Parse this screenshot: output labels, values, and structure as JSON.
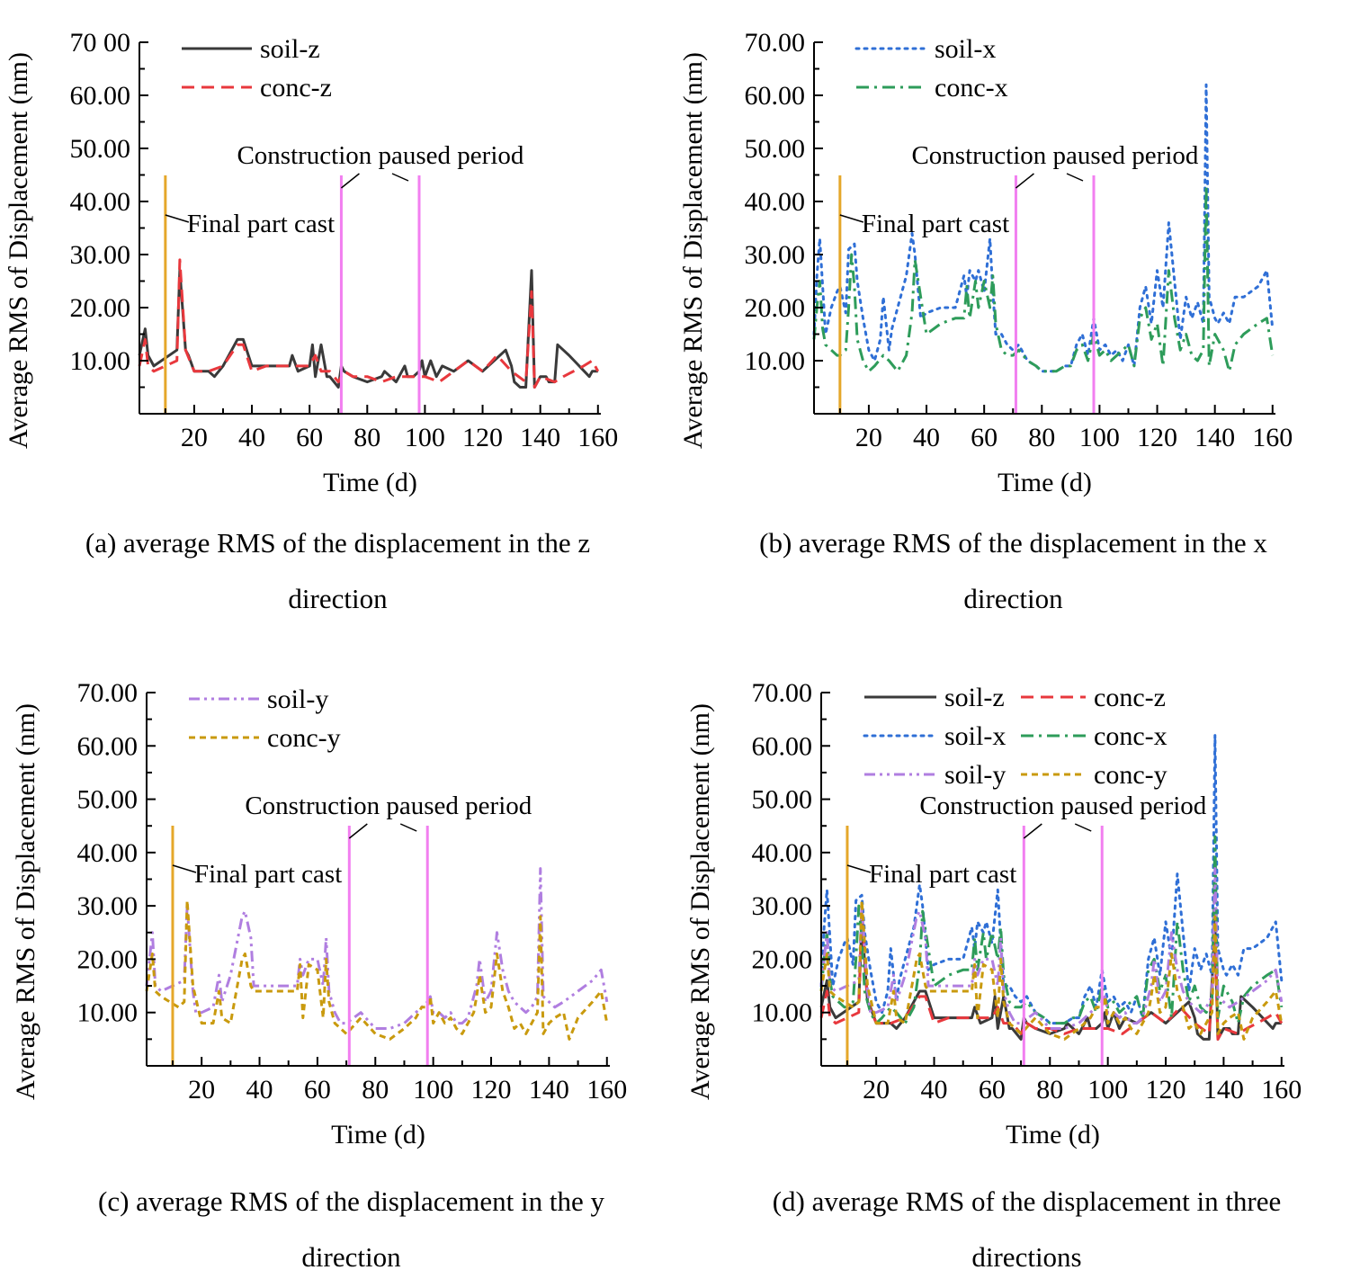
{
  "colors": {
    "soil-z": "#3a3a3a",
    "conc-z": "#e8383d",
    "soil-x": "#2f6fd6",
    "conc-x": "#2e9c5a",
    "soil-y": "#b07ee0",
    "conc-y": "#c99a0e",
    "cast": "#e5a72a",
    "paused": "#f27ff0"
  },
  "chart_data": [
    {
      "id": "a",
      "type": "line",
      "title": "",
      "xlabel": "Time (d)",
      "ylabel": "Average RMS of Displacement (nm)",
      "xlim": [
        1,
        161
      ],
      "ylim": [
        0,
        70
      ],
      "xticks": [
        "20",
        "40",
        "60",
        "80",
        "100",
        "120",
        "140",
        "160"
      ],
      "yticks": [
        "10.00",
        "20.00",
        "30.00",
        "40.00",
        "50.00",
        "60.00",
        "70 00"
      ],
      "legend": [
        "soil-z",
        "conc-z"
      ],
      "legend_position": "top-left",
      "caption": [
        "(a) average RMS of the displacement in the z",
        "direction"
      ],
      "annotations": {
        "cast_label": "Final part cast",
        "cast_day": 10,
        "paused_label": "Construction paused period",
        "paused_days": [
          71,
          98
        ]
      },
      "series": [
        {
          "name": "soil-z",
          "style": "solid",
          "x": [
            1,
            3,
            4,
            6,
            14,
            15,
            17,
            18,
            20,
            25,
            27,
            30,
            35,
            37,
            40,
            45,
            53,
            54,
            56,
            60,
            61,
            62,
            64,
            66,
            67,
            70,
            71,
            72,
            75,
            80,
            85,
            86,
            90,
            93,
            94,
            96,
            98,
            99,
            100,
            102,
            104,
            106,
            110,
            115,
            120,
            124,
            128,
            130,
            131,
            133,
            135,
            137,
            138,
            140,
            141,
            142,
            143,
            145,
            146,
            148,
            150,
            157,
            158,
            160
          ],
          "y": [
            11,
            16,
            11,
            9,
            12,
            27,
            12,
            11,
            8,
            8,
            7,
            9,
            14,
            14,
            9,
            9,
            9,
            11,
            8,
            9,
            13,
            7,
            13,
            7,
            7,
            5,
            9,
            8,
            7,
            6,
            7,
            8,
            6,
            9,
            7,
            7,
            8,
            10,
            7,
            10,
            7,
            9,
            8,
            10,
            8,
            10,
            12,
            9,
            6,
            5,
            5,
            27,
            5,
            7,
            7,
            7,
            6,
            6,
            13,
            12,
            11,
            7,
            8,
            8
          ]
        },
        {
          "name": "conc-z",
          "style": "dash",
          "x": [
            1,
            3,
            4,
            6,
            14,
            15,
            17,
            20,
            25,
            30,
            35,
            37,
            40,
            45,
            55,
            60,
            62,
            64,
            67,
            70,
            72,
            75,
            80,
            85,
            90,
            95,
            100,
            105,
            110,
            115,
            120,
            125,
            130,
            135,
            137,
            138,
            140,
            145,
            148,
            155,
            158,
            160
          ],
          "y": [
            9,
            14,
            9,
            8,
            10,
            29,
            12,
            8,
            8,
            9,
            13,
            13,
            8,
            9,
            9,
            9,
            11,
            8,
            8,
            6,
            8,
            7,
            7,
            6,
            7,
            7,
            7,
            6,
            8,
            10,
            8,
            11,
            8,
            6,
            23,
            5,
            7,
            6,
            7,
            9,
            10,
            8
          ]
        }
      ]
    },
    {
      "id": "b",
      "type": "line",
      "title": "",
      "xlabel": "Time (d)",
      "ylabel": "Average RMS of Displacement (nm)",
      "xlim": [
        1,
        161
      ],
      "ylim": [
        0,
        70
      ],
      "xticks": [
        "20",
        "40",
        "60",
        "80",
        "100",
        "120",
        "140",
        "160"
      ],
      "yticks": [
        "10.00",
        "20.00",
        "30.00",
        "40.00",
        "50.00",
        "60.00",
        "70.00"
      ],
      "legend": [
        "soil-x",
        "conc-x"
      ],
      "legend_position": "top-left",
      "caption": [
        "(b) average RMS of the displacement in the x",
        "direction"
      ],
      "annotations": {
        "cast_label": "Final part cast",
        "cast_day": 10,
        "paused_label": "Construction paused period",
        "paused_days": [
          71,
          98
        ]
      },
      "series": [
        {
          "name": "soil-x",
          "style": "dot",
          "x": [
            1,
            2,
            3,
            4,
            5,
            7,
            9,
            10,
            12,
            13,
            15,
            16,
            18,
            20,
            22,
            24,
            25,
            27,
            28,
            30,
            33,
            35,
            36,
            38,
            40,
            45,
            50,
            53,
            54,
            55,
            57,
            58,
            60,
            62,
            63,
            64,
            66,
            68,
            70,
            72,
            75,
            78,
            80,
            85,
            88,
            90,
            92,
            94,
            96,
            98,
            100,
            102,
            104,
            106,
            108,
            110,
            112,
            114,
            116,
            118,
            120,
            122,
            124,
            126,
            128,
            130,
            132,
            134,
            136,
            137,
            138,
            140,
            141,
            143,
            145,
            147,
            150,
            155,
            158,
            160
          ],
          "y": [
            15,
            26,
            33,
            24,
            15,
            20,
            23,
            24,
            19,
            31,
            32,
            25,
            18,
            12,
            10,
            14,
            22,
            12,
            16,
            20,
            26,
            34,
            30,
            18,
            19,
            20,
            20,
            26,
            22,
            27,
            25,
            27,
            23,
            33,
            23,
            15,
            15,
            13,
            12,
            13,
            10,
            9,
            8,
            8,
            9,
            9,
            13,
            15,
            11,
            18,
            12,
            13,
            11,
            12,
            10,
            13,
            9,
            20,
            24,
            17,
            27,
            20,
            36,
            25,
            14,
            22,
            18,
            21,
            17,
            62,
            22,
            18,
            17,
            19,
            17,
            22,
            22,
            24,
            27,
            16
          ]
        },
        {
          "name": "conc-x",
          "style": "dashdot",
          "x": [
            1,
            2,
            3,
            4,
            5,
            7,
            9,
            10,
            12,
            13,
            14,
            15,
            16,
            18,
            20,
            22,
            25,
            27,
            30,
            33,
            35,
            36,
            38,
            40,
            45,
            50,
            53,
            54,
            55,
            57,
            58,
            60,
            62,
            63,
            64,
            66,
            68,
            70,
            72,
            75,
            78,
            80,
            85,
            88,
            90,
            92,
            94,
            96,
            98,
            100,
            102,
            104,
            106,
            110,
            112,
            114,
            116,
            118,
            120,
            122,
            124,
            126,
            128,
            130,
            132,
            134,
            136,
            137,
            138,
            140,
            143,
            145,
            147,
            150,
            155,
            158,
            160
          ],
          "y": [
            14,
            20,
            25,
            16,
            13,
            12,
            11,
            11,
            12,
            20,
            30,
            24,
            14,
            10,
            8,
            9,
            11,
            10,
            8,
            11,
            19,
            29,
            22,
            15,
            17,
            18,
            18,
            24,
            18,
            25,
            20,
            25,
            20,
            26,
            17,
            12,
            11,
            11,
            12,
            10,
            9,
            8,
            8,
            9,
            9,
            12,
            13,
            10,
            15,
            11,
            12,
            10,
            11,
            13,
            9,
            18,
            20,
            14,
            17,
            9,
            27,
            18,
            12,
            15,
            11,
            10,
            12,
            43,
            9,
            15,
            12,
            8,
            13,
            15,
            17,
            18,
            11
          ]
        }
      ]
    },
    {
      "id": "c",
      "type": "line",
      "title": "",
      "xlabel": "Time (d)",
      "ylabel": "Average RMS of Displacement (nm)",
      "xlim": [
        1,
        161
      ],
      "ylim": [
        0,
        70
      ],
      "xticks": [
        "20",
        "40",
        "60",
        "80",
        "100",
        "120",
        "140",
        "160"
      ],
      "yticks": [
        "10.00",
        "20.00",
        "30.00",
        "40.00",
        "50.00",
        "60.00",
        "70.00"
      ],
      "legend": [
        "soil-y",
        "conc-y"
      ],
      "legend_position": "top-left",
      "caption": [
        "(c) average RMS of the displacement in the y",
        "direction"
      ],
      "annotations": {
        "cast_label": "Final part cast",
        "cast_day": 10,
        "paused_label": "Construction paused period",
        "paused_days": [
          71,
          98
        ]
      },
      "series": [
        {
          "name": "soil-y",
          "style": "dashdotdot",
          "x": [
            1,
            3,
            4,
            6,
            14,
            15,
            17,
            18,
            20,
            24,
            26,
            27,
            30,
            34,
            35,
            37,
            38,
            40,
            45,
            53,
            54,
            55,
            57,
            60,
            62,
            63,
            64,
            66,
            68,
            70,
            75,
            80,
            85,
            90,
            94,
            96,
            98,
            99,
            100,
            102,
            104,
            106,
            108,
            110,
            112,
            114,
            115,
            116,
            118,
            120,
            122,
            124,
            126,
            128,
            130,
            132,
            134,
            136,
            137,
            138,
            140,
            142,
            145,
            150,
            155,
            158,
            160
          ],
          "y": [
            15,
            25,
            15,
            14,
            16,
            30,
            14,
            10,
            10,
            11,
            17,
            12,
            17,
            28,
            29,
            24,
            15,
            15,
            15,
            15,
            20,
            17,
            20,
            20,
            15,
            24,
            14,
            10,
            8,
            8,
            10,
            7,
            7,
            8,
            10,
            11,
            12,
            13,
            10,
            10,
            9,
            10,
            8,
            8,
            9,
            13,
            15,
            20,
            12,
            14,
            25,
            18,
            14,
            12,
            11,
            10,
            11,
            13,
            37,
            13,
            12,
            11,
            12,
            14,
            16,
            18,
            12
          ]
        },
        {
          "name": "conc-y",
          "style": "shortdash",
          "x": [
            1,
            3,
            4,
            6,
            12,
            14,
            15,
            17,
            20,
            24,
            26,
            27,
            30,
            34,
            35,
            37,
            38,
            40,
            45,
            53,
            54,
            55,
            57,
            60,
            62,
            63,
            64,
            66,
            68,
            70,
            75,
            80,
            85,
            90,
            94,
            96,
            98,
            99,
            100,
            102,
            104,
            106,
            108,
            110,
            112,
            114,
            115,
            116,
            118,
            120,
            122,
            124,
            126,
            128,
            130,
            132,
            134,
            136,
            137,
            138,
            140,
            142,
            145,
            147,
            150,
            155,
            158,
            160
          ],
          "y": [
            14,
            21,
            14,
            13,
            11,
            12,
            31,
            15,
            8,
            8,
            14,
            9,
            8,
            20,
            21,
            15,
            14,
            14,
            14,
            14,
            19,
            9,
            19,
            18,
            9,
            20,
            12,
            8,
            7,
            6,
            9,
            6,
            5,
            7,
            9,
            11,
            11,
            13,
            8,
            10,
            8,
            9,
            7,
            6,
            8,
            10,
            13,
            17,
            10,
            11,
            21,
            14,
            11,
            7,
            8,
            6,
            8,
            10,
            28,
            6,
            8,
            9,
            10,
            5,
            9,
            12,
            14,
            8
          ]
        }
      ]
    },
    {
      "id": "d",
      "type": "line",
      "title": "",
      "xlabel": "Time (d)",
      "ylabel": "Average RMS of Displacement (nm)",
      "xlim": [
        1,
        161
      ],
      "ylim": [
        0,
        70
      ],
      "xticks": [
        "20",
        "40",
        "60",
        "80",
        "100",
        "120",
        "140",
        "160"
      ],
      "yticks": [
        "10.00",
        "20.00",
        "30.00",
        "40.00",
        "50.00",
        "60.00",
        "70.00"
      ],
      "legend": [
        "soil-z",
        "conc-z",
        "soil-x",
        "conc-x",
        "soil-y",
        "conc-y"
      ],
      "legend_position": "top",
      "caption": [
        "(d) average RMS of the displacement in three",
        "directions"
      ],
      "annotations": {
        "cast_label": "Final part cast",
        "cast_day": 10,
        "paused_label": "Construction paused period",
        "paused_days": [
          71,
          98
        ]
      },
      "series_ref": [
        "a:soil-z",
        "a:conc-z",
        "b:soil-x",
        "b:conc-x",
        "c:soil-y",
        "c:conc-y"
      ]
    }
  ]
}
